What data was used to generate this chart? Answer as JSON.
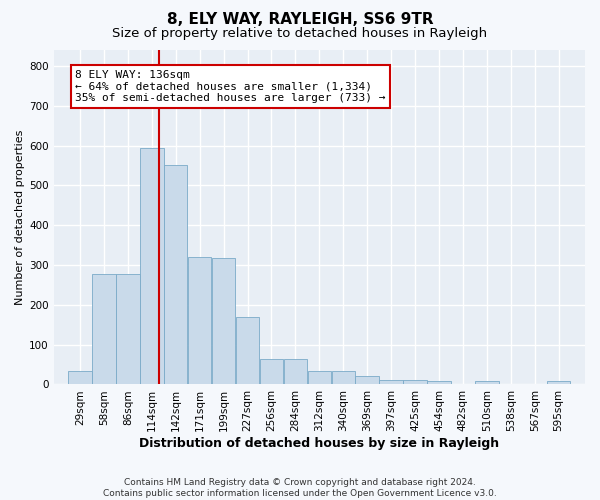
{
  "title": "8, ELY WAY, RAYLEIGH, SS6 9TR",
  "subtitle": "Size of property relative to detached houses in Rayleigh",
  "xlabel": "Distribution of detached houses by size in Rayleigh",
  "ylabel": "Number of detached properties",
  "bar_color": "#c9daea",
  "bar_edge_color": "#7aaac8",
  "fig_bg_color": "#f5f8fc",
  "axes_bg_color": "#e8eef5",
  "grid_color": "#ffffff",
  "vline_x": 136,
  "vline_color": "#cc0000",
  "annotation_text": "8 ELY WAY: 136sqm\n← 64% of detached houses are smaller (1,334)\n35% of semi-detached houses are larger (733) →",
  "annotation_box_facecolor": "#ffffff",
  "annotation_box_edgecolor": "#cc0000",
  "bin_starts": [
    29,
    57,
    85,
    113,
    141,
    169,
    197,
    225,
    253,
    281,
    309,
    337,
    365,
    393,
    421,
    449,
    477,
    505,
    533,
    561,
    589
  ],
  "bin_width": 28,
  "bar_heights": [
    35,
    278,
    278,
    595,
    550,
    320,
    318,
    170,
    65,
    65,
    35,
    35,
    20,
    12,
    10,
    8,
    0,
    8,
    0,
    0,
    8
  ],
  "tick_labels": [
    "29sqm",
    "58sqm",
    "86sqm",
    "114sqm",
    "142sqm",
    "171sqm",
    "199sqm",
    "227sqm",
    "256sqm",
    "284sqm",
    "312sqm",
    "340sqm",
    "369sqm",
    "397sqm",
    "425sqm",
    "454sqm",
    "482sqm",
    "510sqm",
    "538sqm",
    "567sqm",
    "595sqm"
  ],
  "ylim": [
    0,
    840
  ],
  "yticks": [
    0,
    100,
    200,
    300,
    400,
    500,
    600,
    700,
    800
  ],
  "footer_line1": "Contains HM Land Registry data © Crown copyright and database right 2024.",
  "footer_line2": "Contains public sector information licensed under the Open Government Licence v3.0.",
  "title_fontsize": 11,
  "subtitle_fontsize": 9.5,
  "xlabel_fontsize": 9,
  "ylabel_fontsize": 8,
  "tick_fontsize": 7.5,
  "annotation_fontsize": 8,
  "footer_fontsize": 6.5
}
